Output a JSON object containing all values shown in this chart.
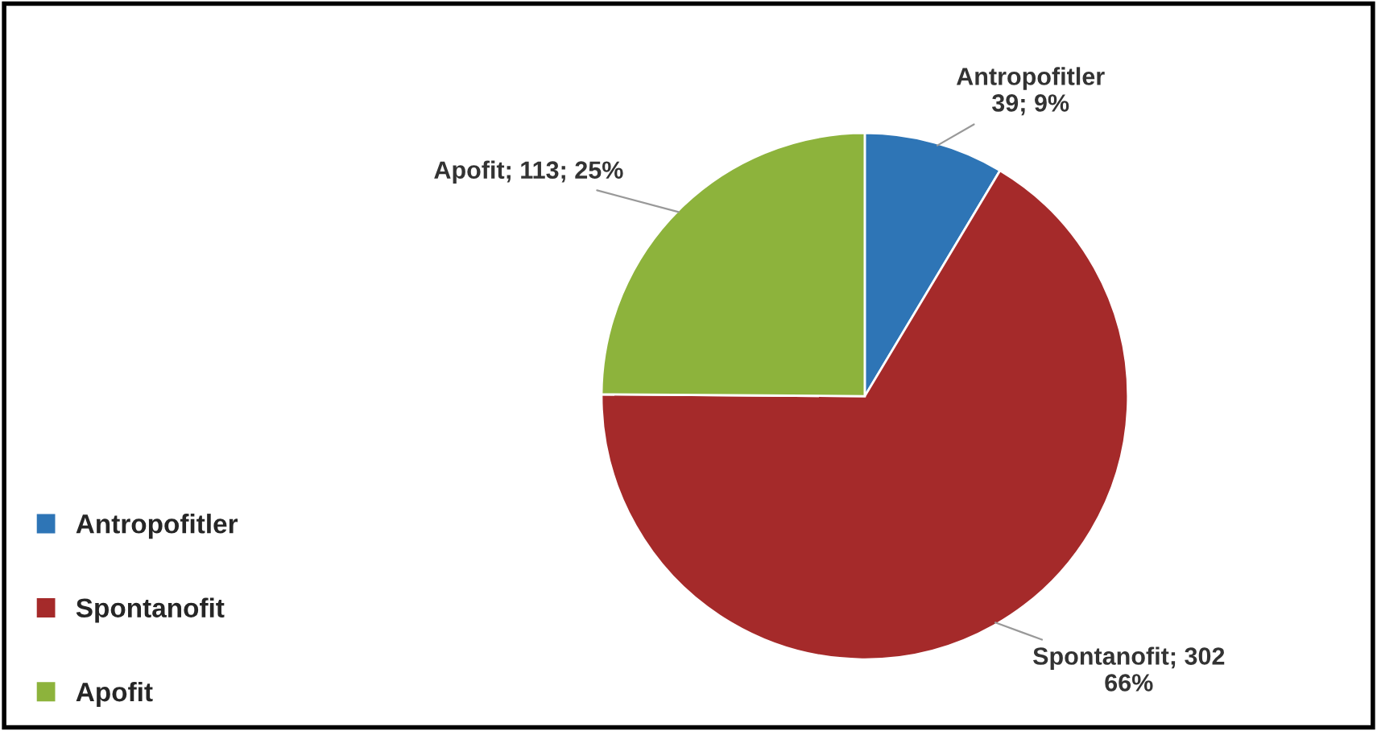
{
  "chart_data": {
    "type": "pie",
    "categories": [
      "Antropofitler",
      "Spontanofit",
      "Apofit"
    ],
    "values": [
      39,
      302,
      113
    ],
    "colors": [
      "#2e75b6",
      "#a52a2a",
      "#8db33c"
    ],
    "value_labels": [
      "Antropofitler\n39; 9%",
      "Spontanofit; 302\n66%",
      "Apofit; 113; 25%"
    ],
    "legend": "bottom left"
  }
}
